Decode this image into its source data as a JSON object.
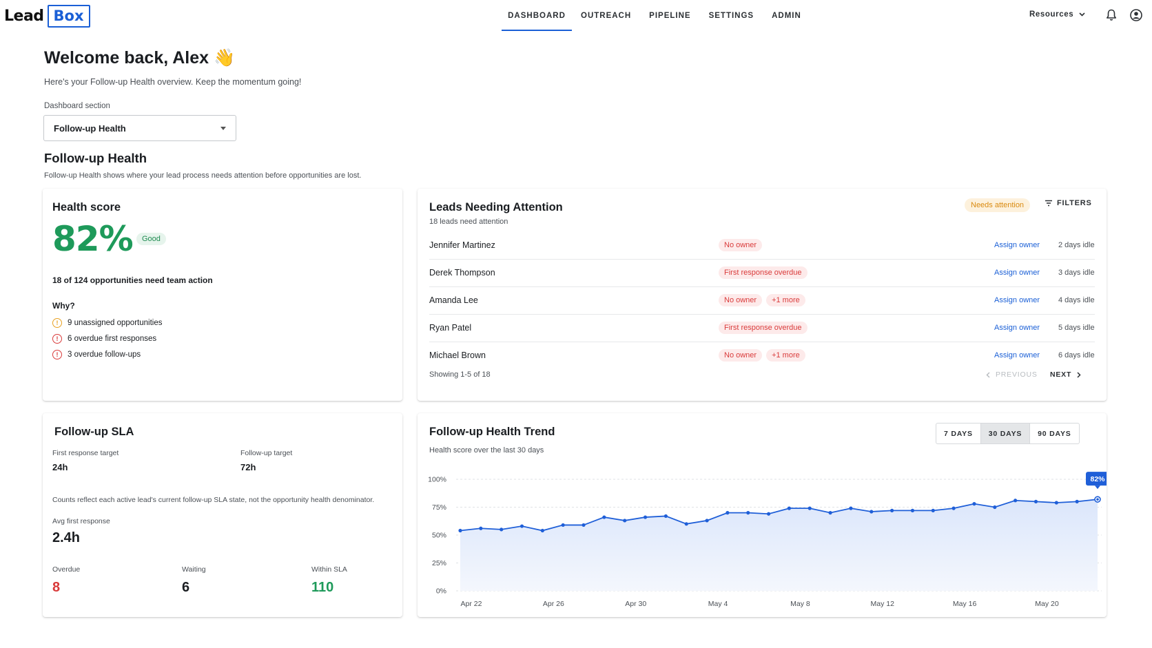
{
  "brand": {
    "part1": "Lead",
    "part2": "Box"
  },
  "nav": {
    "items": [
      {
        "label": "DASHBOARD",
        "active": true
      },
      {
        "label": "OUTREACH"
      },
      {
        "label": "PIPELINE"
      },
      {
        "label": "SETTINGS"
      },
      {
        "label": "ADMIN"
      }
    ],
    "resources_label": "Resources"
  },
  "header": {
    "welcome": "Welcome back, Alex 👋",
    "subtitle": "Here's your Follow-up Health overview. Keep the momentum going!",
    "section_label": "Dashboard section",
    "section_value": "Follow-up Health",
    "section_title": "Follow-up Health",
    "section_desc": "Follow-up Health shows where your lead process needs attention before opportunities are lost."
  },
  "health": {
    "title": "Health score",
    "score": "82%",
    "badge": "Good",
    "need_action": "18 of 124 opportunities need team action",
    "why_label": "Why?",
    "reasons": [
      {
        "text": "9 unassigned opportunities",
        "level": "warning",
        "icon": "warning-icon"
      },
      {
        "text": "6 overdue first responses",
        "level": "error",
        "icon": "error-icon"
      },
      {
        "text": "3 overdue follow-ups",
        "level": "error",
        "icon": "error-icon"
      }
    ]
  },
  "leads": {
    "title": "Leads Needing Attention",
    "subtitle": "18 leads need attention",
    "badge": "Needs attention",
    "filters_label": "FILTERS",
    "rows": [
      {
        "name": "Jennifer Martinez",
        "tags": [
          "No owner"
        ],
        "action": "Assign owner",
        "idle": "2 days idle"
      },
      {
        "name": "Derek Thompson",
        "tags": [
          "First response overdue"
        ],
        "action": "Assign owner",
        "idle": "3 days idle"
      },
      {
        "name": "Amanda Lee",
        "tags": [
          "No owner",
          "+1 more"
        ],
        "action": "Assign owner",
        "idle": "4 days idle"
      },
      {
        "name": "Ryan Patel",
        "tags": [
          "First response overdue"
        ],
        "action": "Assign owner",
        "idle": "5 days idle"
      },
      {
        "name": "Michael Brown",
        "tags": [
          "No owner",
          "+1 more"
        ],
        "action": "Assign owner",
        "idle": "6 days idle"
      }
    ],
    "showing": "Showing 1-5 of 18",
    "prev_label": "PREVIOUS",
    "next_label": "NEXT"
  },
  "sla": {
    "title": "Follow-up SLA",
    "first_response_label": "First response target",
    "first_response_value": "24h",
    "followup_label": "Follow-up target",
    "followup_value": "72h",
    "note": "Counts reflect each active lead's current follow-up SLA state, not the opportunity health denominator.",
    "avg_label": "Avg first response",
    "avg_value": "2.4h",
    "overdue_label": "Overdue",
    "overdue_value": "8",
    "waiting_label": "Waiting",
    "waiting_value": "6",
    "within_label": "Within SLA",
    "within_value": "110"
  },
  "trend": {
    "title": "Follow-up Health Trend",
    "subtitle": "Health score over the last 30 days",
    "ranges": [
      {
        "label": "7 DAYS"
      },
      {
        "label": "30 DAYS",
        "active": true
      },
      {
        "label": "90 DAYS"
      }
    ],
    "callout": "82%"
  },
  "colors": {
    "accent": "#1a5fd6",
    "good": "#1e9a5a",
    "danger": "#d93a3a",
    "warning": "#e8a020",
    "line": "#1f5fd8"
  },
  "chart_data": {
    "type": "area",
    "title": "",
    "xlabel": "",
    "ylabel": "",
    "ylim": [
      0,
      100
    ],
    "y_ticks": [
      "0%",
      "25%",
      "50%",
      "75%",
      "100%"
    ],
    "x_tick_labels": [
      "Apr 22",
      "Apr 26",
      "Apr 30",
      "May 4",
      "May 8",
      "May 12",
      "May 16",
      "May 20"
    ],
    "x": [
      "Apr 22",
      "Apr 23",
      "Apr 24",
      "Apr 25",
      "Apr 26",
      "Apr 27",
      "Apr 28",
      "Apr 29",
      "Apr 30",
      "May 1",
      "May 2",
      "May 3",
      "May 4",
      "May 5",
      "May 6",
      "May 7",
      "May 8",
      "May 9",
      "May 10",
      "May 11",
      "May 12",
      "May 13",
      "May 14",
      "May 15",
      "May 16",
      "May 17",
      "May 18",
      "May 19",
      "May 20",
      "May 21",
      "May 22",
      "May 23"
    ],
    "series": [
      {
        "values": [
          54,
          56,
          55,
          58,
          54,
          59,
          59,
          66,
          63,
          66,
          67,
          60,
          63,
          70,
          70,
          69,
          74,
          74,
          70,
          74,
          71,
          72,
          72,
          72,
          74,
          78,
          75,
          81,
          80,
          79,
          80,
          82
        ]
      }
    ],
    "grid": true
  }
}
